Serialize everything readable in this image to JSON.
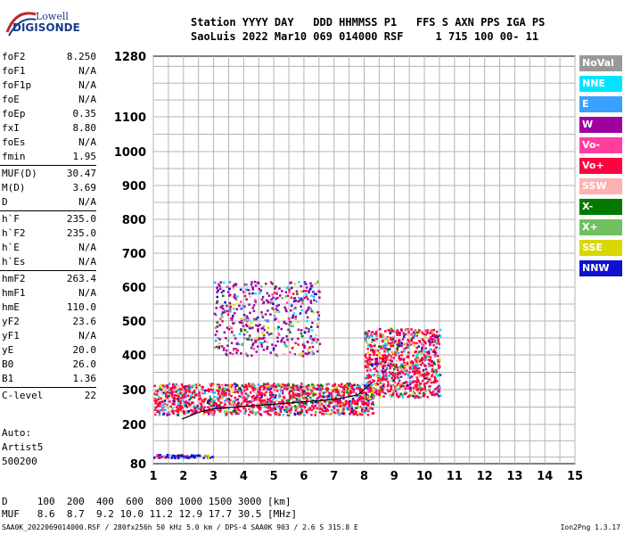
{
  "logo": {
    "line1": "Lowell",
    "line2": "DIGISONDE"
  },
  "header": {
    "row1": "Station YYYY DAY   DDD HHMMSS P1   FFS S AXN PPS IGA PS",
    "row2": "SaoLuis 2022 Mar10 069 014000 RSF     1 715 100 00- 11"
  },
  "params": [
    {
      "k": "foF2",
      "v": "8.250"
    },
    {
      "k": "foF1",
      "v": "N/A"
    },
    {
      "k": "foF1p",
      "v": "N/A"
    },
    {
      "k": "foE",
      "v": "N/A"
    },
    {
      "k": "foEp",
      "v": "0.35"
    },
    {
      "k": "fxI",
      "v": "8.80"
    },
    {
      "k": "foEs",
      "v": "N/A"
    },
    {
      "k": "fmin",
      "v": "1.95"
    },
    {
      "k": "MUF(D)",
      "v": "30.47"
    },
    {
      "k": "M(D)",
      "v": "3.69"
    },
    {
      "k": "D",
      "v": "N/A"
    },
    {
      "k": "h`F",
      "v": "235.0"
    },
    {
      "k": "h`F2",
      "v": "235.0"
    },
    {
      "k": "h`E",
      "v": "N/A"
    },
    {
      "k": "h`Es",
      "v": "N/A"
    },
    {
      "k": "hmF2",
      "v": "263.4"
    },
    {
      "k": "hmF1",
      "v": "N/A"
    },
    {
      "k": "hmE",
      "v": "110.0"
    },
    {
      "k": "yF2",
      "v": "23.6"
    },
    {
      "k": "yF1",
      "v": "N/A"
    },
    {
      "k": "yE",
      "v": "20.0"
    },
    {
      "k": "B0",
      "v": "26.0"
    },
    {
      "k": "B1",
      "v": "1.36"
    },
    {
      "k": "C-level",
      "v": "22"
    }
  ],
  "auto": {
    "line1": "Auto:",
    "line2": "Artist5",
    "line3": "500200"
  },
  "legend": [
    {
      "label": "NoVal",
      "color": "#999999"
    },
    {
      "label": "NNE",
      "color": "#00e5ff"
    },
    {
      "label": "E",
      "color": "#3aa0ff"
    },
    {
      "label": "W",
      "color": "#a000a0"
    },
    {
      "label": "Vo-",
      "color": "#ff3fa0"
    },
    {
      "label": "Vo+",
      "color": "#ff0040"
    },
    {
      "label": "SSW",
      "color": "#ffb0b0"
    },
    {
      "label": "X-",
      "color": "#007a00"
    },
    {
      "label": "X+",
      "color": "#70c060"
    },
    {
      "label": "SSE",
      "color": "#d8d800"
    },
    {
      "label": "NNW",
      "color": "#1010d0"
    }
  ],
  "dmuf": {
    "d_row": "D     100  200  400  600  800 1000 1500 3000 [km]",
    "muf_row": "MUF   8.6  8.7  9.2 10.0 11.2 12.9 17.7 30.5 [MHz]"
  },
  "footer": {
    "left": "SAA0K_2022069014000.RSF / 280fx256h 50 kHz 5.0 km / DPS-4 SAA0K 903 / 2.6 S 315.8 E",
    "right": "Ion2Png 1.3.17"
  },
  "chart_data": {
    "type": "scatter",
    "title": "",
    "xlabel": "",
    "ylabel": "",
    "xlim": [
      1,
      15
    ],
    "ylim": [
      80,
      1280
    ],
    "y_scale": "log-like (non-linear virtual height)",
    "x_ticks": [
      1,
      2,
      3,
      4,
      5,
      6,
      7,
      8,
      9,
      10,
      11,
      12,
      13,
      14,
      15
    ],
    "y_ticks": [
      80,
      200,
      300,
      400,
      500,
      600,
      700,
      800,
      900,
      1000,
      1100,
      1280
    ],
    "grid": true,
    "trace_profile": {
      "name": "",
      "x": [
        1.95,
        2.5,
        3.0,
        4.0,
        5.0,
        6.0,
        7.0,
        7.8,
        8.25
      ],
      "y": [
        215,
        235,
        245,
        252,
        258,
        265,
        272,
        285,
        320
      ]
    },
    "echo_regions": [
      {
        "x_range": [
          1.0,
          8.3
        ],
        "y_range": [
          230,
          320
        ],
        "dominant": "Vo+"
      },
      {
        "x_range": [
          8.0,
          10.5
        ],
        "y_range": [
          280,
          480
        ],
        "dominant": "Vo+"
      },
      {
        "x_range": [
          3.0,
          6.5
        ],
        "y_range": [
          400,
          620
        ],
        "dominant": "W"
      },
      {
        "x_range": [
          1.0,
          3.0
        ],
        "y_range": [
          100,
          110
        ],
        "dominant": "NNW"
      }
    ]
  }
}
